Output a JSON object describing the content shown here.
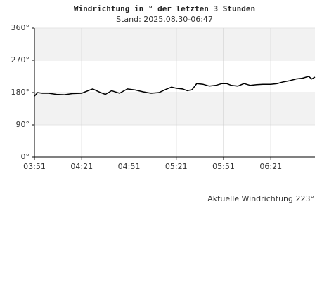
{
  "chart_data": {
    "type": "line",
    "title": "Windrichtung in ° der letzten 3 Stunden",
    "subtitle": "Stand: 2025.08.30-06:47",
    "annotation": "Aktuelle Windrichtung 223°",
    "x": [
      "03:51",
      "03:53",
      "03:56",
      "04:00",
      "04:05",
      "04:10",
      "04:15",
      "04:21",
      "04:25",
      "04:28",
      "04:33",
      "04:36",
      "04:40",
      "04:45",
      "04:50",
      "04:55",
      "05:00",
      "05:05",
      "05:10",
      "05:15",
      "05:18",
      "05:21",
      "05:25",
      "05:28",
      "05:31",
      "05:34",
      "05:38",
      "05:42",
      "05:46",
      "05:50",
      "05:53",
      "05:56",
      "06:00",
      "06:04",
      "06:08",
      "06:12",
      "06:16",
      "06:21",
      "06:25",
      "06:29",
      "06:33",
      "06:37",
      "06:41",
      "06:45",
      "06:47",
      "06:49"
    ],
    "series": [
      {
        "name": "Windrichtung",
        "color": "#000000",
        "values": [
          170,
          180,
          178,
          178,
          175,
          174,
          177,
          178,
          185,
          190,
          180,
          175,
          185,
          178,
          190,
          187,
          182,
          178,
          180,
          190,
          195,
          192,
          190,
          185,
          188,
          205,
          203,
          198,
          200,
          205,
          205,
          200,
          198,
          205,
          200,
          202,
          203,
          203,
          205,
          210,
          213,
          218,
          220,
          225,
          218,
          223
        ]
      }
    ],
    "xlim": [
      "03:51",
      "06:49"
    ],
    "xticks": [
      "03:51",
      "04:21",
      "04:51",
      "05:21",
      "05:51",
      "06:21"
    ],
    "ylim": [
      0,
      360
    ],
    "yticks": [
      {
        "value": 0,
        "label": "0°"
      },
      {
        "value": 90,
        "label": "90°"
      },
      {
        "value": 180,
        "label": "180°"
      },
      {
        "value": 270,
        "label": "270°"
      },
      {
        "value": 360,
        "label": "360°"
      }
    ],
    "grid": true,
    "band_color": "#f2f2f2",
    "grid_color": "#cccccc"
  }
}
